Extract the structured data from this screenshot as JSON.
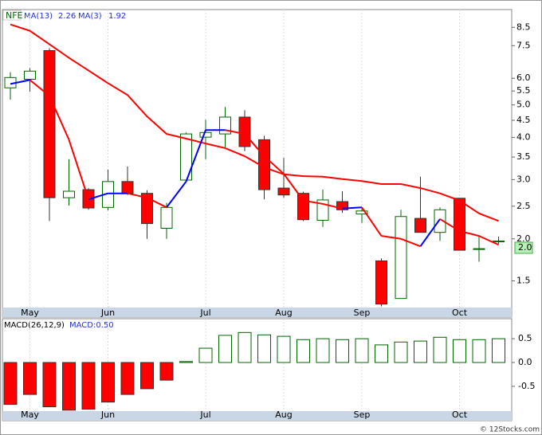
{
  "chart_data": [
    {
      "type": "candlestick",
      "title": "NFE",
      "log_scale": true,
      "categories": [
        null,
        "May",
        null,
        null,
        null,
        "Jun",
        null,
        null,
        null,
        null,
        "Jul",
        null,
        null,
        null,
        "Aug",
        null,
        null,
        null,
        "Sep",
        null,
        null,
        null,
        null,
        "Oct",
        null,
        null
      ],
      "open": [
        5.62,
        5.96,
        7.25,
        2.65,
        2.8,
        2.48,
        2.96,
        2.73,
        2.15,
        2.99,
        4.01,
        4.1,
        4.6,
        3.94,
        2.83,
        2.73,
        2.27,
        2.58,
        2.37,
        1.72,
        1.33,
        2.3,
        2.09,
        2.64,
        1.87,
        1.97
      ],
      "high": [
        6.26,
        6.43,
        7.37,
        3.45,
        2.83,
        3.21,
        3.28,
        2.79,
        2.56,
        4.14,
        4.52,
        4.93,
        4.82,
        4.05,
        3.48,
        2.76,
        2.8,
        2.77,
        2.48,
        1.75,
        2.44,
        3.06,
        2.48,
        2.64,
        2.05,
        2.03
      ],
      "low": [
        5.18,
        5.47,
        2.26,
        2.51,
        2.44,
        2.43,
        2.7,
        2.0,
        2.0,
        2.99,
        3.45,
        3.74,
        3.64,
        2.62,
        2.65,
        2.26,
        2.17,
        2.39,
        2.23,
        1.26,
        1.33,
        2.09,
        1.97,
        1.85,
        1.71,
        1.93
      ],
      "close": [
        6.03,
        6.3,
        2.65,
        2.77,
        2.47,
        2.96,
        2.73,
        2.22,
        2.48,
        4.1,
        4.14,
        4.6,
        3.76,
        2.8,
        2.7,
        2.28,
        2.61,
        2.44,
        2.42,
        1.28,
        2.33,
        2.09,
        2.44,
        1.85,
        1.87,
        1.97
      ],
      "up_color": "#006400",
      "down_color": "#ff0000",
      "series": [
        {
          "name": "MA(13)",
          "color": "#ff0000",
          "values": [
            8.67,
            8.3,
            7.57,
            6.9,
            6.33,
            5.8,
            5.35,
            4.62,
            4.1,
            3.97,
            3.84,
            3.72,
            3.52,
            3.26,
            3.11,
            3.07,
            3.06,
            3.01,
            2.97,
            2.91,
            2.91,
            2.83,
            2.73,
            2.6,
            2.38,
            2.26
          ]
        },
        {
          "name": "MA(3)",
          "rise_color": "#0000ff",
          "fall_color": "#ff0000",
          "values": [
            5.77,
            5.93,
            5.32,
            3.94,
            2.62,
            2.73,
            2.73,
            2.65,
            2.48,
            2.96,
            4.21,
            4.21,
            4.1,
            3.52,
            3.12,
            2.6,
            2.54,
            2.46,
            2.48,
            2.04,
            2.0,
            1.9,
            2.29,
            2.11,
            2.04,
            1.92
          ]
        }
      ],
      "ylim": [
        1.25,
        9.6
      ],
      "yticks": [
        8.5,
        7.5,
        {
          "value": 6,
          "label": "6.0"
        },
        5.5,
        {
          "value": 5,
          "label": "5.0"
        },
        4.5,
        {
          "value": 4,
          "label": "4.0"
        },
        3.5,
        {
          "value": 3,
          "label": "3.0"
        },
        2.5,
        {
          "value": 2,
          "label": "2.0"
        },
        1.5
      ],
      "last_label": "2.0"
    },
    {
      "type": "bar",
      "series": [
        {
          "name": "MACD(26,12,9)",
          "up_color": "#006400",
          "down_color": "#ff0000",
          "values": [
            -0.88,
            -0.67,
            -0.93,
            -1.0,
            -0.98,
            -0.83,
            -0.67,
            -0.55,
            -0.37,
            0.02,
            0.3,
            0.57,
            0.63,
            0.58,
            0.55,
            0.48,
            0.5,
            0.48,
            0.5,
            0.37,
            0.43,
            0.45,
            0.53,
            0.48,
            0.48,
            0.5
          ]
        }
      ],
      "current_label": "MACD:0.50",
      "ylim": [
        -1.02,
        0.92
      ],
      "yticks": [
        0.5,
        {
          "value": 0,
          "label": "0.0"
        },
        -0.5
      ]
    }
  ],
  "watermark": "© 12Stocks.com"
}
